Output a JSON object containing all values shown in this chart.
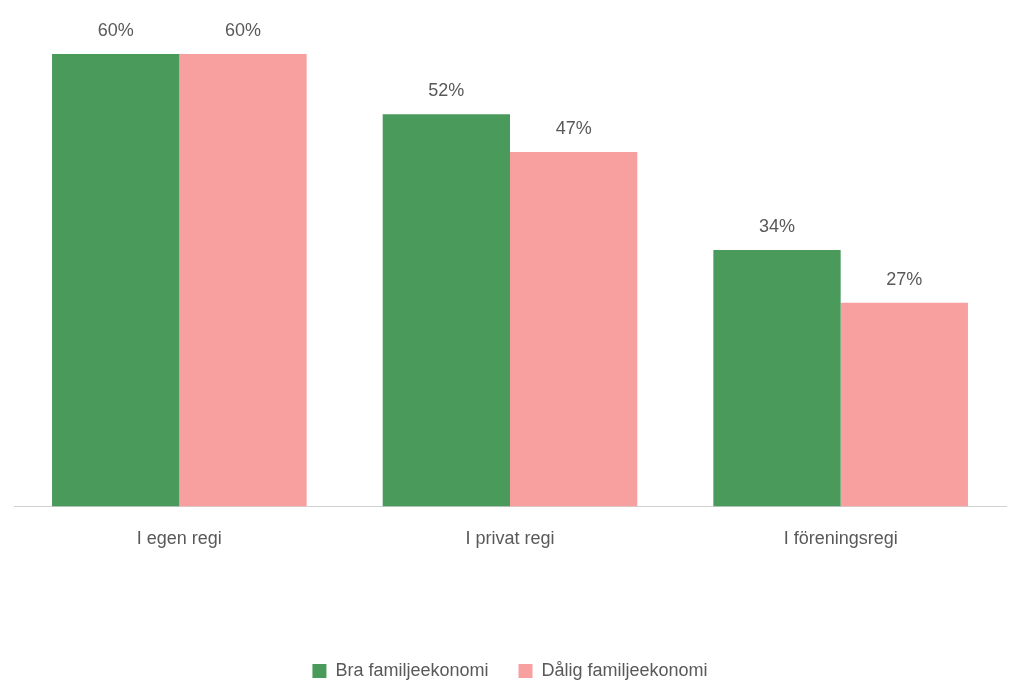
{
  "chart_data": {
    "type": "bar",
    "categories": [
      "I egen regi",
      "I privat regi",
      "I föreningsregi"
    ],
    "series": [
      {
        "name": "Bra familjeekonomi",
        "color": "#4a9a5b",
        "values": [
          60,
          52,
          34
        ],
        "value_labels": [
          "60%",
          "52%",
          "34%"
        ]
      },
      {
        "name": "Dålig familjeekonomi",
        "color": "#f8a09f",
        "values": [
          60,
          47,
          27
        ],
        "value_labels": [
          "60%",
          "47%",
          "27%"
        ]
      }
    ],
    "legend": "bottom",
    "grid": false
  }
}
